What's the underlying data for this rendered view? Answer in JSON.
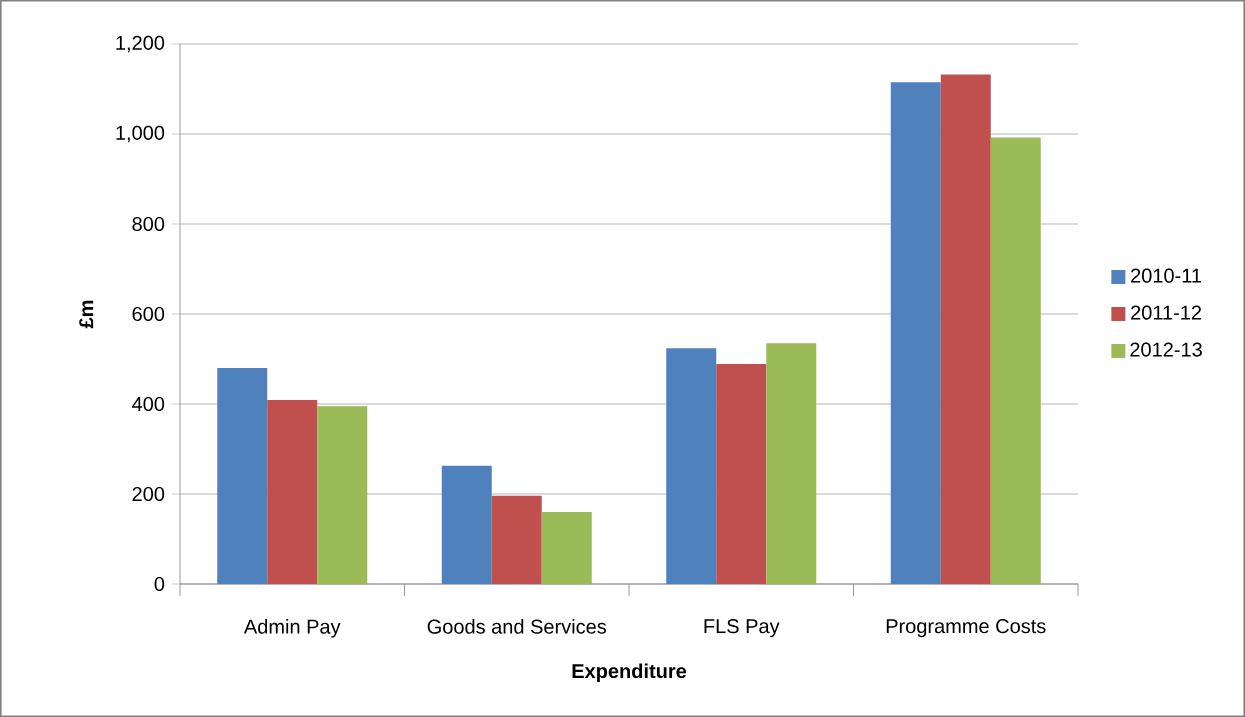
{
  "chart_data": {
    "type": "bar",
    "categories": [
      "Admin Pay",
      "Goods and Services",
      "FLS Pay",
      "Programme Costs"
    ],
    "series": [
      {
        "name": "2010-11",
        "color": "#4f81bd",
        "values": [
          480,
          263,
          524,
          1115
        ]
      },
      {
        "name": "2011-12",
        "color": "#c0504d",
        "values": [
          409,
          196,
          489,
          1132
        ]
      },
      {
        "name": "2012-13",
        "color": "#9bbb59",
        "values": [
          395,
          160,
          535,
          992
        ]
      }
    ],
    "xlabel": "Expenditure",
    "ylabel": "£m",
    "ylim": [
      0,
      1200
    ],
    "yticks": [
      0,
      200,
      400,
      600,
      800,
      {
        "value": 1000,
        "label": "1,000"
      },
      {
        "value": 1200,
        "label": "1,200"
      }
    ],
    "grid": "y",
    "legend": "right"
  }
}
